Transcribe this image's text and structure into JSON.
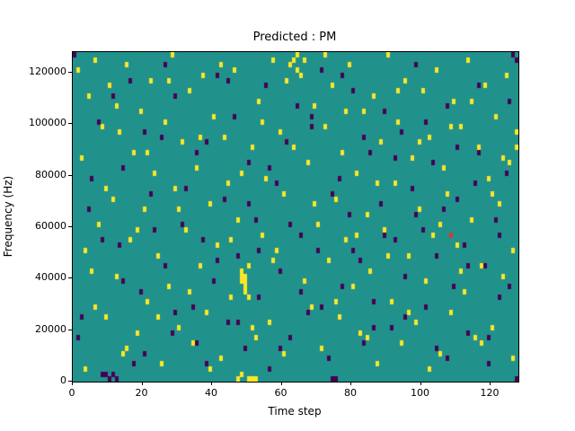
{
  "chart_data": {
    "type": "heatmap",
    "title": "Predicted : PM",
    "xlabel": "Time step",
    "ylabel": "Frequency (Hz)",
    "x_range": [
      0,
      128
    ],
    "y_range": [
      0,
      128000
    ],
    "x_ticks": [
      0,
      20,
      40,
      60,
      80,
      100,
      120
    ],
    "y_ticks": [
      0,
      20000,
      40000,
      60000,
      80000,
      100000,
      120000
    ],
    "grid": {
      "cols": 128,
      "rows": 64,
      "hz_per_row": 2000
    },
    "legend": "none",
    "colors": {
      "background": "#21918c",
      "high": "#fde725",
      "low": "#440154",
      "accent": "#d63a2f",
      "axis": "#000000"
    },
    "yellow_cells": [
      [
        1,
        60
      ],
      [
        2,
        43
      ],
      [
        3,
        2
      ],
      [
        4,
        55
      ],
      [
        5,
        21
      ],
      [
        6,
        62
      ],
      [
        7,
        30
      ],
      [
        8,
        49
      ],
      [
        9,
        12
      ],
      [
        10,
        57
      ],
      [
        11,
        35
      ],
      [
        12,
        20
      ],
      [
        13,
        48
      ],
      [
        14,
        5
      ],
      [
        15,
        61
      ],
      [
        16,
        27
      ],
      [
        17,
        44
      ],
      [
        18,
        9
      ],
      [
        19,
        52
      ],
      [
        20,
        33
      ],
      [
        21,
        15
      ],
      [
        22,
        58
      ],
      [
        23,
        40
      ],
      [
        24,
        24
      ],
      [
        25,
        3
      ],
      [
        26,
        50
      ],
      [
        27,
        18
      ],
      [
        28,
        63
      ],
      [
        29,
        37
      ],
      [
        30,
        10
      ],
      [
        31,
        46
      ],
      [
        32,
        29
      ],
      [
        33,
        56
      ],
      [
        34,
        7
      ],
      [
        35,
        41
      ],
      [
        36,
        22
      ],
      [
        37,
        59
      ],
      [
        38,
        13
      ],
      [
        39,
        34
      ],
      [
        40,
        51
      ],
      [
        41,
        26
      ],
      [
        42,
        4
      ],
      [
        43,
        47
      ],
      [
        44,
        38
      ],
      [
        45,
        16
      ],
      [
        46,
        60
      ],
      [
        47,
        31
      ],
      [
        47,
        0
      ],
      [
        48,
        19
      ],
      [
        48,
        20
      ],
      [
        48,
        21
      ],
      [
        48,
        1
      ],
      [
        49,
        17
      ],
      [
        49,
        18
      ],
      [
        49,
        19
      ],
      [
        49,
        20
      ],
      [
        50,
        16
      ],
      [
        50,
        22
      ],
      [
        50,
        0
      ],
      [
        51,
        45
      ],
      [
        51,
        0
      ],
      [
        52,
        8
      ],
      [
        52,
        0
      ],
      [
        53,
        54
      ],
      [
        54,
        28
      ],
      [
        55,
        39
      ],
      [
        56,
        11
      ],
      [
        57,
        62
      ],
      [
        58,
        25
      ],
      [
        59,
        48
      ],
      [
        60,
        36
      ],
      [
        61,
        58
      ],
      [
        62,
        61
      ],
      [
        63,
        62
      ],
      [
        64,
        60
      ],
      [
        64,
        63
      ],
      [
        65,
        59
      ],
      [
        66,
        62
      ],
      [
        67,
        42
      ],
      [
        68,
        14
      ],
      [
        69,
        53
      ],
      [
        70,
        30
      ],
      [
        71,
        6
      ],
      [
        72,
        49
      ],
      [
        73,
        23
      ],
      [
        74,
        57
      ],
      [
        75,
        35
      ],
      [
        76,
        12
      ],
      [
        77,
        44
      ],
      [
        78,
        27
      ],
      [
        79,
        61
      ],
      [
        80,
        18
      ],
      [
        81,
        40
      ],
      [
        82,
        9
      ],
      [
        83,
        52
      ],
      [
        84,
        32
      ],
      [
        85,
        21
      ],
      [
        86,
        55
      ],
      [
        87,
        3
      ],
      [
        88,
        46
      ],
      [
        89,
        29
      ],
      [
        90,
        63
      ],
      [
        91,
        15
      ],
      [
        92,
        38
      ],
      [
        93,
        50
      ],
      [
        94,
        7
      ],
      [
        95,
        58
      ],
      [
        96,
        24
      ],
      [
        97,
        43
      ],
      [
        98,
        11
      ],
      [
        99,
        33
      ],
      [
        100,
        56
      ],
      [
        101,
        19
      ],
      [
        102,
        47
      ],
      [
        103,
        28
      ],
      [
        104,
        60
      ],
      [
        105,
        5
      ],
      [
        106,
        41
      ],
      [
        107,
        36
      ],
      [
        108,
        13
      ],
      [
        109,
        54
      ],
      [
        110,
        26
      ],
      [
        111,
        49
      ],
      [
        112,
        17
      ],
      [
        113,
        62
      ],
      [
        114,
        31
      ],
      [
        115,
        8
      ],
      [
        116,
        45
      ],
      [
        117,
        22
      ],
      [
        118,
        57
      ],
      [
        119,
        39
      ],
      [
        120,
        10
      ],
      [
        121,
        51
      ],
      [
        122,
        34
      ],
      [
        123,
        20
      ],
      [
        124,
        59
      ],
      [
        125,
        42
      ],
      [
        126,
        4
      ],
      [
        127,
        48
      ],
      [
        127,
        45
      ],
      [
        3,
        25
      ],
      [
        6,
        14
      ],
      [
        9,
        37
      ],
      [
        12,
        53
      ],
      [
        15,
        6
      ],
      [
        18,
        29
      ],
      [
        21,
        44
      ],
      [
        24,
        12
      ],
      [
        27,
        58
      ],
      [
        30,
        33
      ],
      [
        33,
        17
      ],
      [
        36,
        47
      ],
      [
        39,
        2
      ],
      [
        42,
        61
      ],
      [
        45,
        27
      ],
      [
        48,
        40
      ],
      [
        51,
        10
      ],
      [
        54,
        50
      ],
      [
        57,
        23
      ],
      [
        60,
        5
      ],
      [
        63,
        45
      ],
      [
        66,
        19
      ],
      [
        69,
        34
      ],
      [
        72,
        63
      ],
      [
        75,
        15
      ],
      [
        78,
        52
      ],
      [
        81,
        28
      ],
      [
        84,
        8
      ],
      [
        87,
        38
      ],
      [
        90,
        24
      ],
      [
        93,
        56
      ],
      [
        96,
        13
      ],
      [
        99,
        46
      ],
      [
        102,
        2
      ],
      [
        105,
        30
      ],
      [
        108,
        49
      ],
      [
        111,
        21
      ],
      [
        114,
        54
      ],
      [
        117,
        7
      ],
      [
        120,
        36
      ],
      [
        123,
        43
      ],
      [
        126,
        25
      ]
    ],
    "purple_cells": [
      [
        0,
        63
      ],
      [
        2,
        12
      ],
      [
        4,
        33
      ],
      [
        7,
        50
      ],
      [
        8,
        1
      ],
      [
        9,
        1
      ],
      [
        10,
        0
      ],
      [
        11,
        1
      ],
      [
        12,
        0
      ],
      [
        13,
        26
      ],
      [
        14,
        41
      ],
      [
        16,
        58
      ],
      [
        19,
        17
      ],
      [
        20,
        5
      ],
      [
        22,
        36
      ],
      [
        25,
        47
      ],
      [
        26,
        22
      ],
      [
        28,
        9
      ],
      [
        29,
        55
      ],
      [
        31,
        30
      ],
      [
        34,
        14
      ],
      [
        35,
        44
      ],
      [
        37,
        27
      ],
      [
        38,
        3
      ],
      [
        40,
        19
      ],
      [
        41,
        59
      ],
      [
        43,
        35
      ],
      [
        44,
        11
      ],
      [
        46,
        51
      ],
      [
        47,
        24
      ],
      [
        49,
        6
      ],
      [
        50,
        42
      ],
      [
        52,
        31
      ],
      [
        53,
        16
      ],
      [
        55,
        57
      ],
      [
        56,
        2
      ],
      [
        58,
        38
      ],
      [
        59,
        21
      ],
      [
        61,
        46
      ],
      [
        62,
        8
      ],
      [
        64,
        53
      ],
      [
        65,
        28
      ],
      [
        67,
        13
      ],
      [
        68,
        49
      ],
      [
        70,
        25
      ],
      [
        71,
        60
      ],
      [
        73,
        4
      ],
      [
        74,
        0
      ],
      [
        75,
        0
      ],
      [
        76,
        39
      ],
      [
        77,
        18
      ],
      [
        79,
        32
      ],
      [
        80,
        56
      ],
      [
        82,
        23
      ],
      [
        83,
        7
      ],
      [
        85,
        44
      ],
      [
        86,
        15
      ],
      [
        88,
        34
      ],
      [
        89,
        52
      ],
      [
        91,
        10
      ],
      [
        92,
        27
      ],
      [
        94,
        48
      ],
      [
        95,
        20
      ],
      [
        97,
        37
      ],
      [
        98,
        61
      ],
      [
        100,
        29
      ],
      [
        101,
        14
      ],
      [
        103,
        42
      ],
      [
        104,
        6
      ],
      [
        106,
        33
      ],
      [
        107,
        53
      ],
      [
        109,
        18
      ],
      [
        110,
        45
      ],
      [
        112,
        26
      ],
      [
        113,
        9
      ],
      [
        115,
        38
      ],
      [
        116,
        57
      ],
      [
        118,
        22
      ],
      [
        119,
        3
      ],
      [
        121,
        31
      ],
      [
        122,
        16
      ],
      [
        124,
        40
      ],
      [
        125,
        54
      ],
      [
        126,
        63
      ],
      [
        127,
        62
      ],
      [
        127,
        0
      ],
      [
        1,
        8
      ],
      [
        5,
        39
      ],
      [
        8,
        27
      ],
      [
        11,
        55
      ],
      [
        14,
        19
      ],
      [
        17,
        3
      ],
      [
        20,
        48
      ],
      [
        23,
        29
      ],
      [
        26,
        61
      ],
      [
        29,
        13
      ],
      [
        32,
        37
      ],
      [
        35,
        7
      ],
      [
        38,
        46
      ],
      [
        41,
        23
      ],
      [
        44,
        58
      ],
      [
        47,
        11
      ],
      [
        50,
        34
      ],
      [
        53,
        25
      ],
      [
        56,
        41
      ],
      [
        59,
        6
      ],
      [
        62,
        30
      ],
      [
        65,
        17
      ],
      [
        68,
        51
      ],
      [
        71,
        14
      ],
      [
        74,
        36
      ],
      [
        77,
        59
      ],
      [
        80,
        25
      ],
      [
        83,
        47
      ],
      [
        86,
        10
      ],
      [
        89,
        28
      ],
      [
        92,
        43
      ],
      [
        95,
        12
      ],
      [
        98,
        32
      ],
      [
        101,
        50
      ],
      [
        104,
        24
      ],
      [
        107,
        4
      ],
      [
        110,
        35
      ],
      [
        113,
        22
      ],
      [
        116,
        44
      ],
      [
        119,
        8
      ],
      [
        122,
        28
      ],
      [
        125,
        18
      ]
    ],
    "red_cells": [
      [
        108,
        28
      ]
    ]
  }
}
